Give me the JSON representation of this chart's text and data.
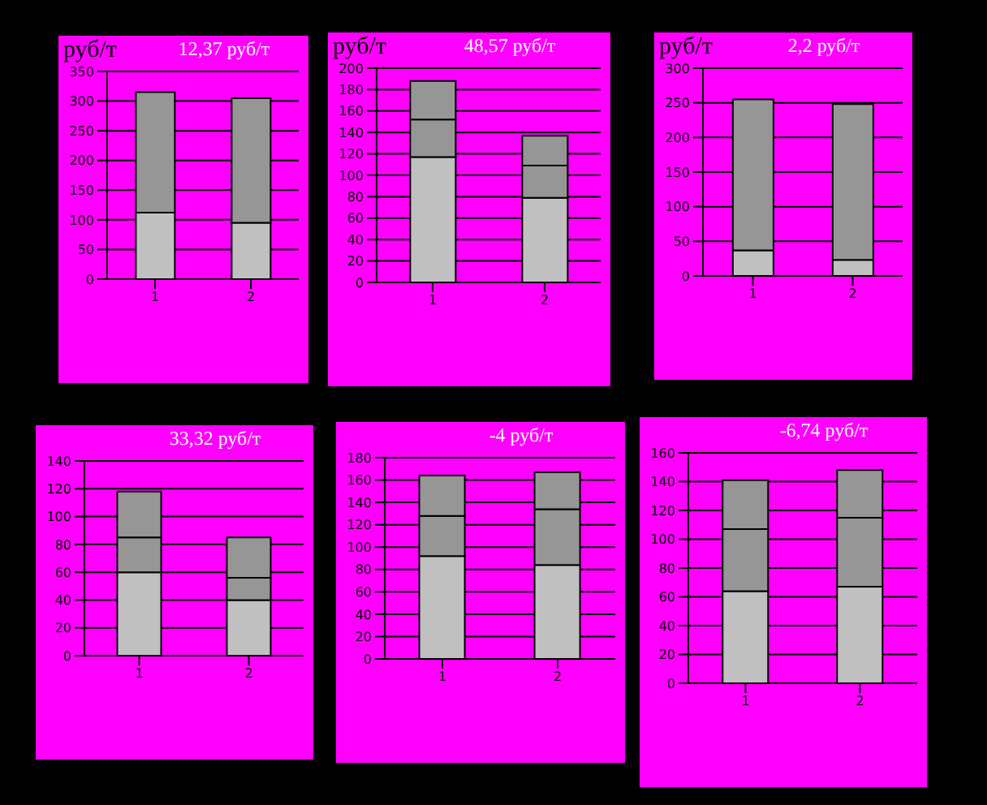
{
  "chart_data": [
    {
      "type": "bar",
      "stacked": true,
      "title": "12,37 руб/т",
      "annotations": [
        "руб/т"
      ],
      "categories": [
        "1",
        "2"
      ],
      "series": [
        {
          "color": "#c0c0c0",
          "values": [
            112,
            95
          ]
        },
        {
          "color": "#969696",
          "values": [
            203,
            210
          ]
        }
      ],
      "ylim": [
        0,
        350
      ],
      "yticks": [
        0,
        50,
        100,
        150,
        200,
        250,
        300,
        350
      ],
      "grid": "y"
    },
    {
      "type": "bar",
      "stacked": true,
      "title": "48,57 руб/т",
      "annotations": [
        "руб/т"
      ],
      "categories": [
        "1",
        "2"
      ],
      "series": [
        {
          "color": "#c0c0c0",
          "values": [
            117,
            79
          ]
        },
        {
          "color": "#969696",
          "values": [
            35,
            30
          ]
        },
        {
          "color": "#969696",
          "values": [
            36,
            28
          ]
        }
      ],
      "ylim": [
        0,
        200
      ],
      "yticks": [
        0,
        20,
        40,
        60,
        80,
        100,
        120,
        140,
        160,
        180,
        200
      ],
      "grid": "y"
    },
    {
      "type": "bar",
      "stacked": true,
      "title": "2,2 руб/т",
      "annotations": [
        "руб/т"
      ],
      "categories": [
        "1",
        "2"
      ],
      "series": [
        {
          "color": "#c0c0c0",
          "values": [
            37,
            23
          ]
        },
        {
          "color": "#969696",
          "values": [
            218,
            225
          ]
        }
      ],
      "ylim": [
        0,
        300
      ],
      "yticks": [
        0,
        50,
        100,
        150,
        200,
        250,
        300
      ],
      "grid": "y"
    },
    {
      "type": "bar",
      "stacked": true,
      "title": "33,32 руб/т",
      "categories": [
        "1",
        "2"
      ],
      "series": [
        {
          "color": "#c0c0c0",
          "values": [
            60,
            40
          ]
        },
        {
          "color": "#969696",
          "values": [
            25,
            16
          ]
        },
        {
          "color": "#969696",
          "values": [
            33,
            29
          ]
        }
      ],
      "ylim": [
        0,
        140
      ],
      "yticks": [
        0,
        20,
        40,
        60,
        80,
        100,
        120,
        140
      ],
      "grid": "y"
    },
    {
      "type": "bar",
      "stacked": true,
      "title": "-4 руб/т",
      "categories": [
        "1",
        "2"
      ],
      "series": [
        {
          "color": "#c0c0c0",
          "values": [
            92,
            84
          ]
        },
        {
          "color": "#969696",
          "values": [
            36,
            50
          ]
        },
        {
          "color": "#969696",
          "values": [
            36,
            33
          ]
        }
      ],
      "ylim": [
        0,
        180
      ],
      "yticks": [
        0,
        20,
        40,
        60,
        80,
        100,
        120,
        140,
        160,
        180
      ],
      "grid": "y"
    },
    {
      "type": "bar",
      "stacked": true,
      "title": "-6,74 руб/т",
      "categories": [
        "1",
        "2"
      ],
      "series": [
        {
          "color": "#c0c0c0",
          "values": [
            64,
            67
          ]
        },
        {
          "color": "#969696",
          "values": [
            43,
            48
          ]
        },
        {
          "color": "#969696",
          "values": [
            34,
            33
          ]
        }
      ],
      "ylim": [
        0,
        160
      ],
      "yticks": [
        0,
        20,
        40,
        60,
        80,
        100,
        120,
        140,
        160
      ],
      "grid": "y"
    }
  ]
}
